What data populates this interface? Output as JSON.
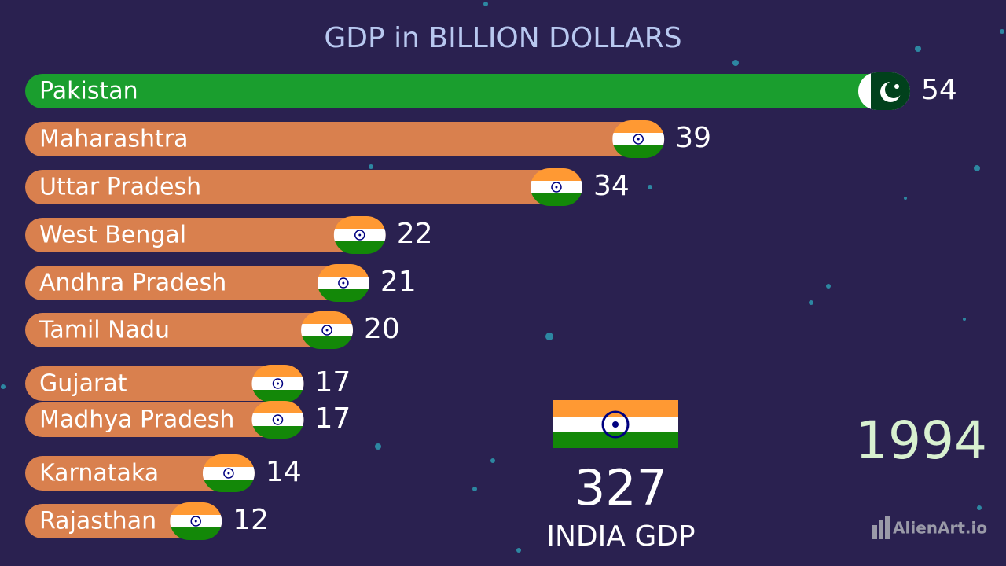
{
  "chart_data": {
    "type": "bar",
    "orientation": "horizontal",
    "title": "GDP in BILLION DOLLARS",
    "categories": [
      "Pakistan",
      "Maharashtra",
      "Uttar Pradesh",
      "West Bengal",
      "Andhra Pradesh",
      "Tamil Nadu",
      "Gujarat",
      "Madhya Pradesh",
      "Karnataka",
      "Rajasthan"
    ],
    "values": [
      54,
      39,
      34,
      22,
      21,
      20,
      17,
      17,
      14,
      12
    ],
    "colors": [
      "#1a9e2e",
      "#d9804e",
      "#d9804e",
      "#d9804e",
      "#d9804e",
      "#d9804e",
      "#d9804e",
      "#d9804e",
      "#d9804e",
      "#d9804e"
    ],
    "total": {
      "value": 327,
      "label": "INDIA GDP"
    },
    "year": "1994",
    "watermark": "AlienArt.io"
  }
}
